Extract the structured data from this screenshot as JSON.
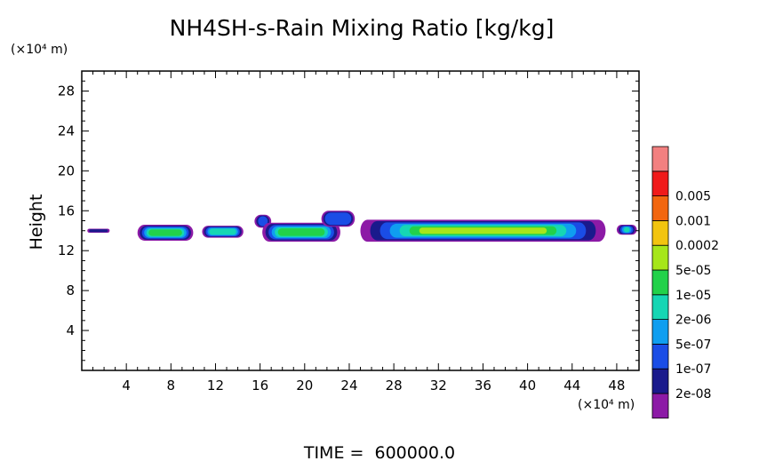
{
  "chart_data": {
    "type": "heatmap",
    "title": "NH4SH-s-Rain Mixing Ratio [kg/kg]",
    "xlabel": "",
    "ylabel": "Height",
    "x_unit_label": "(×10⁴ m)",
    "y_unit_label": "(×10⁴ m)",
    "xlim": [
      0,
      50
    ],
    "ylim": [
      0,
      30
    ],
    "x_ticks": [
      4,
      8,
      12,
      16,
      20,
      24,
      28,
      32,
      36,
      40,
      44,
      48
    ],
    "y_ticks": [
      4,
      8,
      12,
      16,
      20,
      24,
      28
    ],
    "grid": false,
    "footer": "TIME =  600000.0",
    "colorbar": {
      "levels": [
        "2e-08",
        "1e-07",
        "5e-07",
        "2e-06",
        "1e-05",
        "5e-05",
        "0.0002",
        "0.001",
        "0.005"
      ],
      "colors": [
        "#8c1aa6",
        "#1a1a8c",
        "#1a4de6",
        "#0f9ef0",
        "#16d6b4",
        "#22d14a",
        "#a6e61a",
        "#f2c40f",
        "#f2660f",
        "#f01a1a",
        "#f28080"
      ]
    },
    "patches": [
      {
        "x": [
          0.5,
          2.5
        ],
        "y": [
          13.8,
          14.2
        ],
        "level": 1
      },
      {
        "x": [
          5.0,
          10.0
        ],
        "y": [
          13.0,
          14.6
        ],
        "level": 5
      },
      {
        "x": [
          10.8,
          14.5
        ],
        "y": [
          13.3,
          14.5
        ],
        "level": 4
      },
      {
        "x": [
          15.5,
          17.0
        ],
        "y": [
          14.3,
          15.6
        ],
        "level": 2
      },
      {
        "x": [
          16.2,
          23.2
        ],
        "y": [
          12.9,
          14.8
        ],
        "level": 5
      },
      {
        "x": [
          21.5,
          24.5
        ],
        "y": [
          14.4,
          16.0
        ],
        "level": 2
      },
      {
        "x": [
          25.0,
          47.0
        ],
        "y": [
          12.9,
          15.1
        ],
        "level": 6
      },
      {
        "x": [
          48.0,
          49.8
        ],
        "y": [
          13.6,
          14.6
        ],
        "level": 4
      }
    ]
  }
}
